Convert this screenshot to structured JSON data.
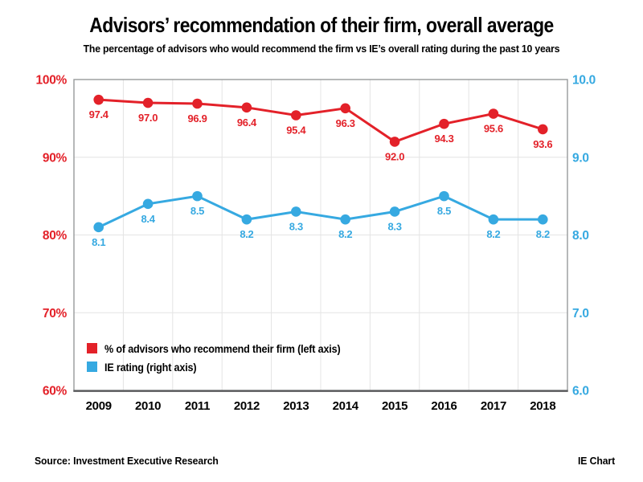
{
  "title": "Advisors’ recommendation of their firm, overall average",
  "subtitle": "The percentage of advisors who would recommend the firm vs IE’s overall rating during the past 10 years",
  "footer": {
    "source": "Source: Investment Executive Research",
    "credit": "IE Chart"
  },
  "chart_data": {
    "type": "line",
    "categories": [
      "2009",
      "2010",
      "2011",
      "2012",
      "2013",
      "2014",
      "2015",
      "2016",
      "2017",
      "2018"
    ],
    "series": [
      {
        "name": "% of advisors who recommend their firm (left axis)",
        "axis": "left",
        "color": "#e32129",
        "values": [
          97.4,
          97.0,
          96.9,
          96.4,
          95.4,
          96.3,
          92.0,
          94.3,
          95.6,
          93.6
        ]
      },
      {
        "name": "IE rating (right axis)",
        "axis": "right",
        "color": "#36a9e1",
        "values": [
          8.1,
          8.4,
          8.5,
          8.2,
          8.3,
          8.2,
          8.3,
          8.5,
          8.2,
          8.2
        ]
      }
    ],
    "left_axis": {
      "min": 60,
      "max": 100,
      "color": "#e32129",
      "ticks": [
        {
          "label": "100%",
          "value": 100
        },
        {
          "label": "90%",
          "value": 90
        },
        {
          "label": "80%",
          "value": 80
        },
        {
          "label": "70%",
          "value": 70
        },
        {
          "label": "60%",
          "value": 60
        }
      ]
    },
    "right_axis": {
      "min": 6,
      "max": 10,
      "color": "#36a9e1",
      "ticks": [
        {
          "label": "10.0",
          "value": 10
        },
        {
          "label": "9.0",
          "value": 9
        },
        {
          "label": "8.0",
          "value": 8
        },
        {
          "label": "7.0",
          "value": 7
        },
        {
          "label": "6.0",
          "value": 6
        }
      ]
    },
    "grid": true,
    "gridline_color": "#e4e4e4",
    "border_color": "#97999b",
    "axis_line_color": "#595a5c",
    "legend_position": "inside bottom-left"
  }
}
